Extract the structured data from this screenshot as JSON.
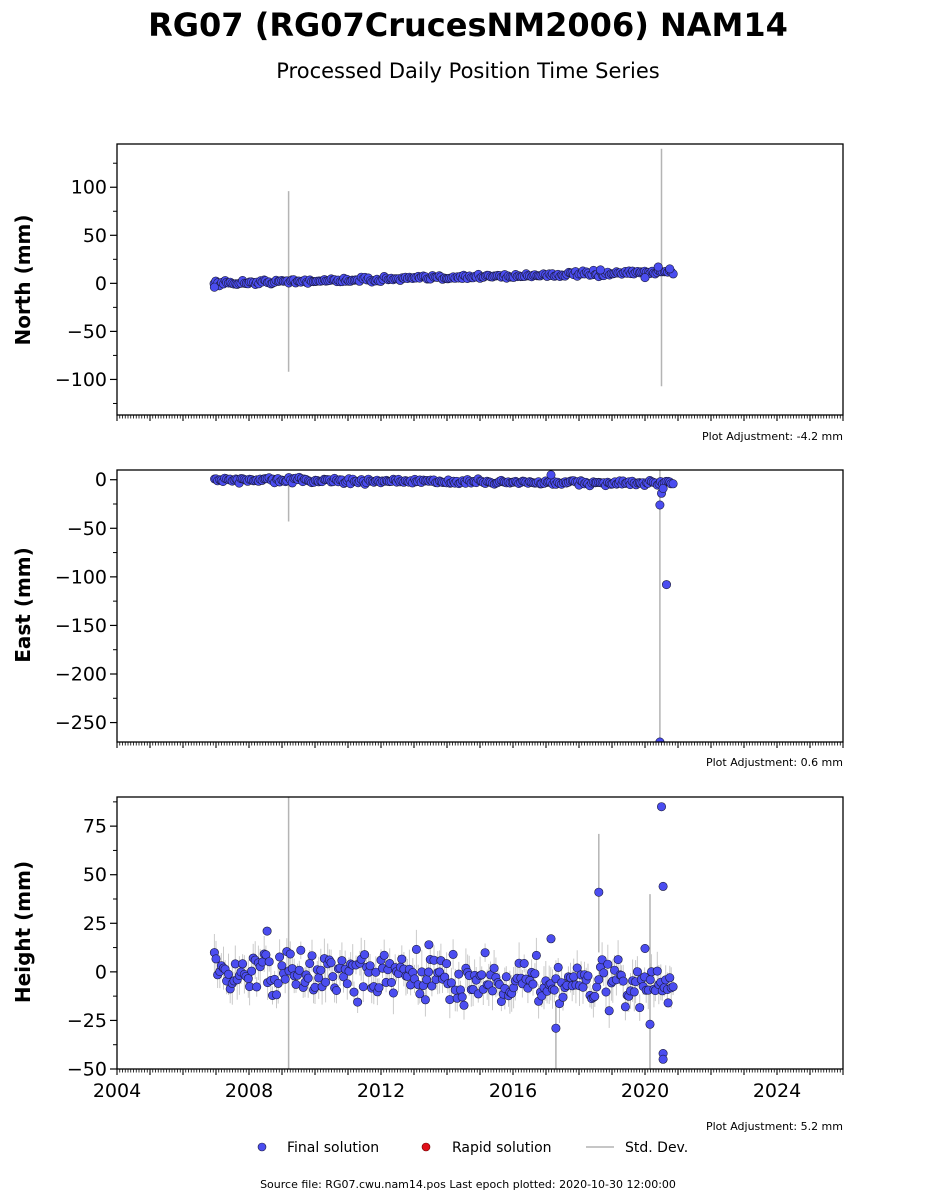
{
  "title": "RG07 (RG07CrucesNM2006) NAM14",
  "subtitle": "Processed Daily Position Time Series",
  "footer": {
    "source_text": "Source file: RG07.cwu.nam14.pos  Last epoch plotted: 2020-10-30 12:00:00"
  },
  "legend": {
    "final_label": "Final solution",
    "rapid_label": "Rapid solution",
    "std_label": "Std. Dev."
  },
  "colors": {
    "final_fill": "#4b4df0",
    "final_edge": "#1a1a3a",
    "rapid_fill": "#e0101a",
    "std_dev": "#b4b4b4"
  },
  "chart_data": [
    {
      "type": "scatter",
      "ylabel": "North (mm)",
      "adjustment": "Plot Adjustment: -4.2 mm",
      "xlim": [
        2004,
        2026
      ],
      "ylim": [
        -137,
        145
      ],
      "yticks": [
        -100,
        -50,
        0,
        50,
        100
      ],
      "grid": false,
      "trend": {
        "x": [
          2006.95,
          2020.85
        ],
        "y": [
          0,
          12
        ]
      },
      "noise": 2.5,
      "band": 2,
      "outliers": [
        {
          "x": 2006.95,
          "y": -4
        },
        {
          "x": 2018.65,
          "y": 14
        },
        {
          "x": 2020.4,
          "y": 17
        },
        {
          "x": 2020.75,
          "y": 15
        },
        {
          "x": 2020.0,
          "y": 6
        }
      ],
      "std_lines": [
        {
          "x": 2009.2,
          "lo": -92,
          "hi": 96
        },
        {
          "x": 2020.5,
          "lo": -107,
          "hi": 140
        }
      ]
    },
    {
      "type": "scatter",
      "ylabel": "East (mm)",
      "adjustment": "Plot Adjustment: 0.6 mm",
      "xlim": [
        2004,
        2026
      ],
      "ylim": [
        -270,
        10
      ],
      "yticks": [
        -250,
        -200,
        -150,
        -100,
        -50,
        0
      ],
      "grid": false,
      "trend": {
        "x": [
          2006.95,
          2020.85
        ],
        "y": [
          0,
          -4
        ]
      },
      "noise": 2.5,
      "band": 2,
      "outliers": [
        {
          "x": 2017.15,
          "y": 5
        },
        {
          "x": 2020.45,
          "y": -26
        },
        {
          "x": 2020.5,
          "y": -14
        },
        {
          "x": 2020.65,
          "y": -108
        },
        {
          "x": 2020.45,
          "y": -270
        },
        {
          "x": 2020.55,
          "y": -9
        }
      ],
      "std_lines": [
        {
          "x": 2009.2,
          "lo": -43,
          "hi": 2
        },
        {
          "x": 2020.45,
          "lo": -270,
          "hi": 10
        }
      ]
    },
    {
      "type": "scatter",
      "ylabel": "Height (mm)",
      "adjustment": "Plot Adjustment: 5.2 mm",
      "xlim": [
        2004,
        2026
      ],
      "ylim": [
        -50,
        90
      ],
      "yticks": [
        -50,
        -25,
        0,
        25,
        50,
        75
      ],
      "xticks": [
        2004,
        2008,
        2012,
        2016,
        2020,
        2024
      ],
      "grid": false,
      "trend": {
        "x": [
          2006.95,
          2020.85
        ],
        "y": [
          0,
          -7
        ]
      },
      "noise": 11,
      "band": 7,
      "outliers": [
        {
          "x": 2008.55,
          "y": 21
        },
        {
          "x": 2013.45,
          "y": 14
        },
        {
          "x": 2017.3,
          "y": -29
        },
        {
          "x": 2017.15,
          "y": 17
        },
        {
          "x": 2018.6,
          "y": 41
        },
        {
          "x": 2020.15,
          "y": -27
        },
        {
          "x": 2020.5,
          "y": 85
        },
        {
          "x": 2020.55,
          "y": 44
        },
        {
          "x": 2020.55,
          "y": -42
        },
        {
          "x": 2020.55,
          "y": -45
        },
        {
          "x": 2020.0,
          "y": 12
        },
        {
          "x": 2020.7,
          "y": -16
        }
      ],
      "std_lines": [
        {
          "x": 2009.2,
          "lo": -50,
          "hi": 90
        },
        {
          "x": 2017.3,
          "lo": -50,
          "hi": -15
        },
        {
          "x": 2018.6,
          "lo": 10,
          "hi": 71
        },
        {
          "x": 2020.15,
          "lo": -50,
          "hi": 40
        }
      ]
    }
  ]
}
